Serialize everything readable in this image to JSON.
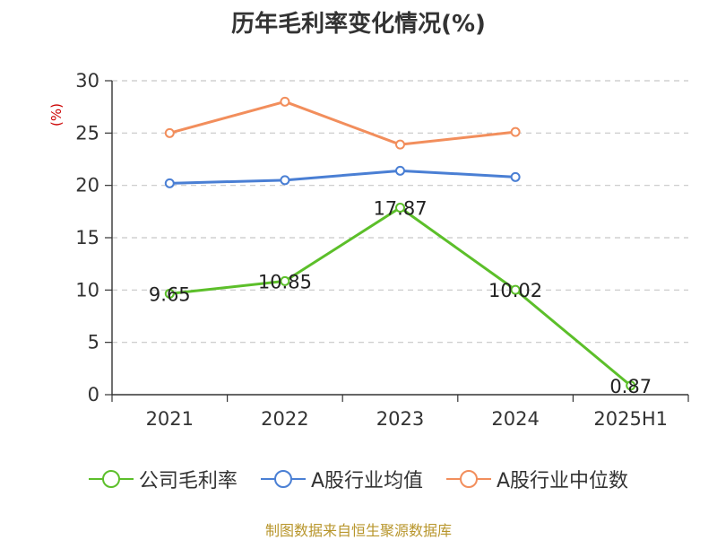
{
  "title": "历年毛利率变化情况(%)",
  "source": "制图数据来自恒生聚源数据库",
  "colors": {
    "gross_margin": "#5cbf2a",
    "industry_mean": "#4a7fd4",
    "industry_median": "#f28e5c",
    "grid": "#c8c8c8",
    "axis": "#333333",
    "unit": "#cc0000"
  },
  "chart_data": {
    "type": "line",
    "title": "历年毛利率变化情况(%)",
    "ylabel": "(%)",
    "xlabel": "",
    "categories": [
      "2021",
      "2022",
      "2023",
      "2024",
      "2025H1"
    ],
    "ylim": [
      0,
      30
    ],
    "yticks": [
      0,
      5,
      10,
      15,
      20,
      25,
      30
    ],
    "grid": true,
    "legend_position": "bottom",
    "series": [
      {
        "name": "公司毛利率",
        "values": [
          9.65,
          10.85,
          17.87,
          10.02,
          0.87
        ],
        "labels": [
          "9.65",
          "10.85",
          "17.87",
          "10.02",
          "0.87"
        ]
      },
      {
        "name": "A股行业均值",
        "values": [
          20.2,
          20.5,
          21.4,
          20.8,
          null
        ]
      },
      {
        "name": "A股行业中位数",
        "values": [
          25.0,
          28.0,
          23.9,
          25.1,
          null
        ]
      }
    ]
  }
}
